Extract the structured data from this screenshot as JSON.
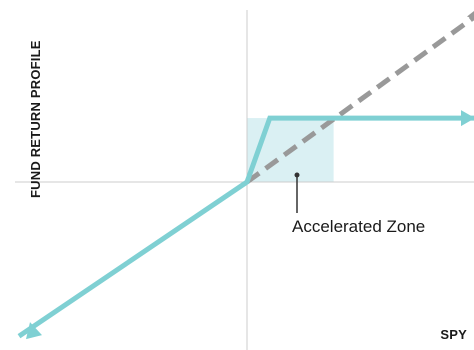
{
  "chart_data": {
    "type": "line",
    "title": "",
    "xlabel": "SPY",
    "ylabel": "FUND RETURN PROFILE",
    "grid": false,
    "legend": "none",
    "colors": {
      "fund_line": "#7fd0d3",
      "spy_line": "#999999",
      "zone_fill": "#daf0f3",
      "axes": "#cccccc",
      "pointer": "#333333"
    },
    "series": [
      {
        "style": "solid",
        "color": "#7fd0d3",
        "x": [
          -1.0,
          0.0,
          0.1,
          1.0
        ],
        "y": [
          -0.82,
          0.0,
          0.34,
          0.34
        ]
      },
      {
        "style": "dashed",
        "color": "#999999",
        "x": [
          0.0,
          1.0
        ],
        "y": [
          0.0,
          0.88
        ]
      }
    ],
    "accelerated_zone": {
      "label": "Accelerated Zone",
      "x_range": [
        0.0,
        0.38
      ],
      "y_range": [
        0.0,
        0.34
      ]
    },
    "xlim": [
      -1.0,
      1.0
    ],
    "ylim": [
      -0.9,
      0.9
    ]
  }
}
